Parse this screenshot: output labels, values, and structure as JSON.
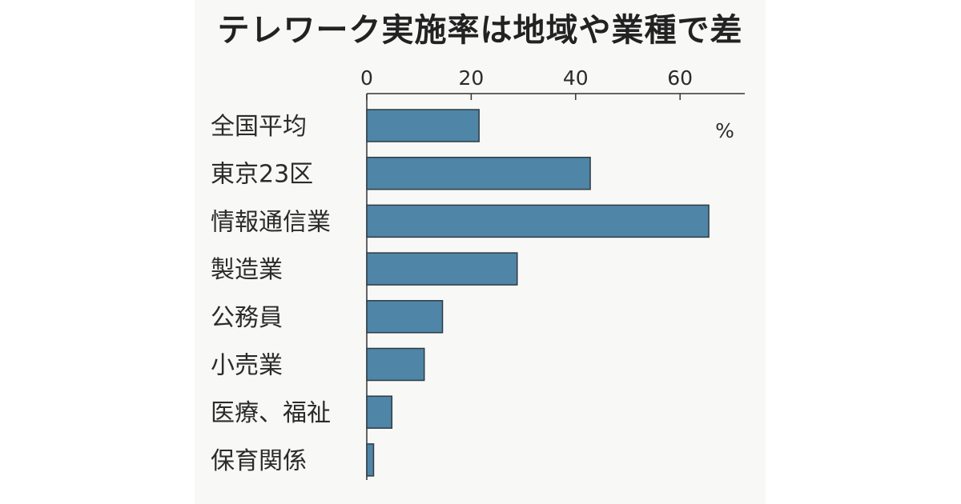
{
  "chart_data": {
    "type": "bar",
    "orientation": "horizontal",
    "title": "テレワーク実施率は地域や業種で差",
    "unit": "%",
    "categories": [
      "全国平均",
      "東京23区",
      "情報通信業",
      "製造業",
      "公務員",
      "小売業",
      "医療、福祉",
      "保育関係"
    ],
    "values": [
      21.5,
      42.8,
      65.5,
      28.8,
      14.5,
      11.0,
      4.8,
      1.3
    ],
    "xlim": [
      0,
      72
    ],
    "xticks": [
      0,
      20,
      40,
      60
    ],
    "tick_labels": [
      "0",
      "20",
      "40",
      "60"
    ],
    "grid": false,
    "bar_color": "#4f85a6",
    "bar_edge_color": "#2e3b44"
  }
}
